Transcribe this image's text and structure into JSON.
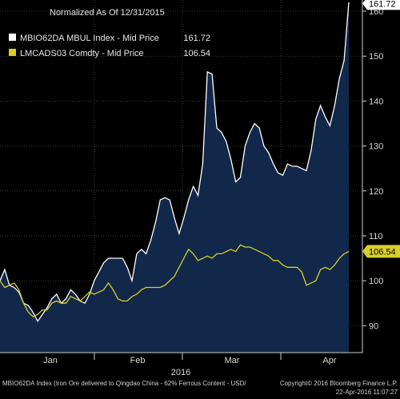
{
  "chart_data": {
    "type": "area",
    "title": "Normalized As Of 12/31/2015",
    "xlabel": "2016",
    "x_ticks": [
      "Jan",
      "Feb",
      "Mar",
      "Apr"
    ],
    "y_ticks": [
      90,
      100,
      110,
      120,
      130,
      140,
      150,
      160
    ],
    "ylim": [
      84,
      162.5
    ],
    "grid": true,
    "legend_position": "top-left",
    "series": [
      {
        "name": "MBIO62DA MBUL Index - Mid Price",
        "legend_value": "161.72",
        "last_value_label": "161.72",
        "color": "#ffffff",
        "fill": "#11284a",
        "values": [
          100,
          102.5,
          99,
          98.5,
          97.5,
          95,
          94.5,
          93,
          91,
          92.5,
          94,
          96,
          97,
          95,
          96,
          98,
          97,
          95.5,
          95,
          97,
          100,
          102,
          104,
          105,
          105,
          105,
          105,
          103,
          100,
          106,
          107,
          106,
          109,
          113,
          118,
          118.5,
          118,
          114,
          110.5,
          114,
          118,
          121,
          119,
          126,
          146.5,
          146,
          134,
          133,
          131,
          127,
          122,
          123,
          130,
          133,
          135,
          134,
          130,
          128.5,
          126,
          124,
          123.5,
          126,
          125.5,
          125.5,
          125,
          124.5,
          129,
          136,
          139,
          136.5,
          134.5,
          139,
          145,
          149,
          162
        ]
      },
      {
        "name": "LMCADS03 Comdty - Mid Price",
        "legend_value": "106.54",
        "last_value_label": "106.54",
        "color": "#d8cf28",
        "values": [
          100,
          98.5,
          99,
          99.5,
          98,
          95,
          93,
          92,
          92.5,
          93.5,
          93.5,
          95,
          95.5,
          95,
          95,
          96.5,
          96,
          95.5,
          96.5,
          97.5,
          97,
          97.5,
          98,
          99.5,
          98,
          96,
          95.5,
          95.5,
          96.5,
          97,
          98,
          98.5,
          98.5,
          98.5,
          98.5,
          99,
          100,
          101,
          103,
          105,
          107,
          106,
          104.5,
          105,
          105.5,
          105,
          106,
          106,
          106.5,
          107,
          106.5,
          108,
          107.5,
          107.5,
          107,
          106.5,
          106,
          105.5,
          104.5,
          104.5,
          103.5,
          103,
          103,
          103,
          102,
          99,
          99.5,
          100,
          102.5,
          103,
          102.5,
          103.5,
          105,
          106,
          106.5
        ]
      }
    ]
  },
  "footer": {
    "source": "MBIO62DA Index (Iron Ore delivered to Qingdao China - 62% Ferrous Content - USD/",
    "copyright": "Copyright© 2016 Bloomberg Finance L.P.",
    "timestamp": "22-Apr-2016 11:07:27"
  }
}
